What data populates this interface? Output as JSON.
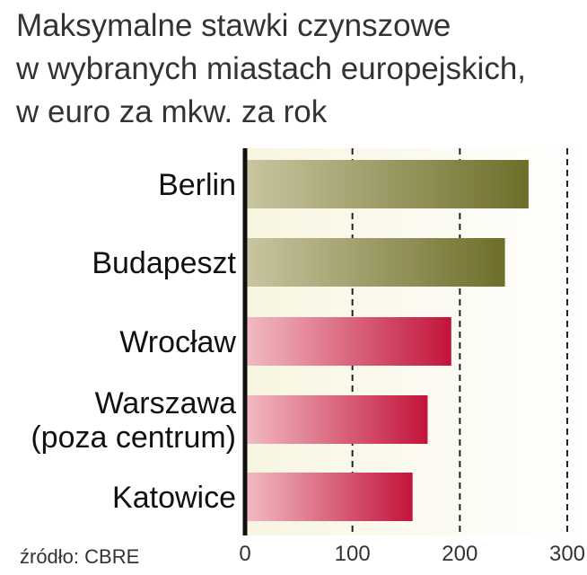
{
  "chart_data": {
    "type": "bar",
    "orientation": "horizontal",
    "title_lines": [
      "Maksymalne stawki czynszowe",
      "w wybranych miastach europejskich,",
      "w euro za mkw. za rok"
    ],
    "categories": [
      [
        "Berlin"
      ],
      [
        "Budapeszt"
      ],
      [
        "Wrocław"
      ],
      [
        "Warszawa",
        "(poza centrum)"
      ],
      [
        "Katowice"
      ]
    ],
    "values": [
      264,
      242,
      192,
      170,
      156
    ],
    "xlim": [
      0,
      300
    ],
    "ticks": [
      "0",
      "100",
      "200",
      "300"
    ],
    "grid": "dashed vertical lines at 100, 200, 300",
    "source": "źródło: CBRE",
    "colors": {
      "bar_olive_dark": "#6e6e2a",
      "bar_olive_light": "#c9c6a0",
      "bar_red_dark": "#c2143a",
      "bar_red_light": "#f2bcc4",
      "plot_bg_light": "#f8f5e0",
      "plot_bg_white": "#ffffff",
      "axis": "#111111",
      "grid": "#222222"
    },
    "bar_color_groups": [
      "olive",
      "olive",
      "red",
      "red",
      "red"
    ]
  }
}
